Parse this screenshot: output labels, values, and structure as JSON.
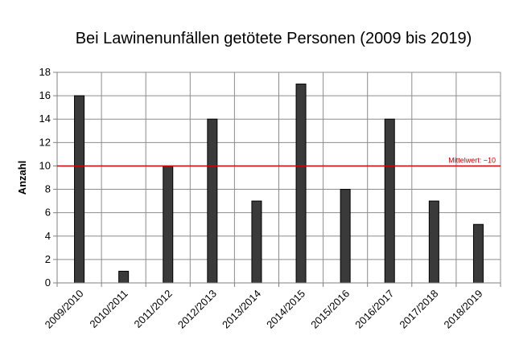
{
  "chart_data": {
    "type": "bar",
    "title": "Bei Lawinenunfällen getötete Personen (2009 bis 2019)",
    "xlabel": "",
    "ylabel": "Anzahl",
    "categories": [
      "2009/2010",
      "2010/2011",
      "2011/2012",
      "2012/2013",
      "2013/2014",
      "2014/2015",
      "2015/2016",
      "2016/2017",
      "2017/2018",
      "2018/2019"
    ],
    "values": [
      16,
      1,
      10,
      14,
      7,
      17,
      8,
      14,
      7,
      5
    ],
    "ylim": [
      0,
      18
    ],
    "yticks": [
      0,
      2,
      4,
      6,
      8,
      10,
      12,
      14,
      16,
      18
    ],
    "grid": true,
    "bar_color": "#3a3a3a",
    "reference_line": {
      "value": 10,
      "label": "Mittelwert:  ~10",
      "color": "#cc0000"
    }
  }
}
